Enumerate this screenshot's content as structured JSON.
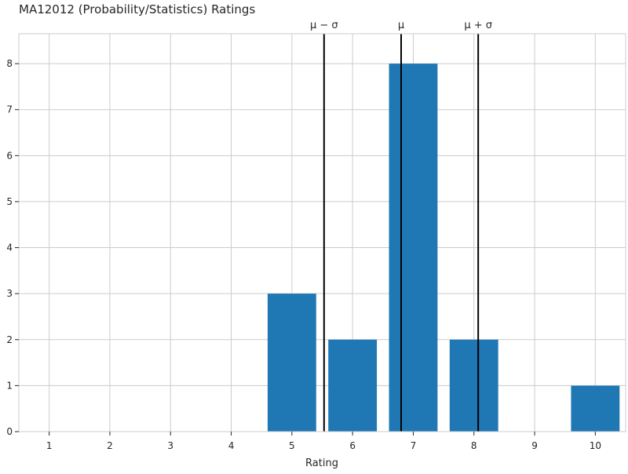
{
  "chart_data": {
    "type": "bar",
    "title": "MA12012 (Probability/Statistics) Ratings",
    "xlabel": "Rating",
    "ylabel": "",
    "categories": [
      "1",
      "2",
      "3",
      "4",
      "5",
      "6",
      "7",
      "8",
      "9",
      "10"
    ],
    "x": [
      1,
      2,
      3,
      4,
      5,
      6,
      7,
      8,
      9,
      10
    ],
    "values": [
      0,
      0,
      0,
      0,
      3,
      2,
      8,
      2,
      0,
      1
    ],
    "xlim": [
      0.5,
      10.5
    ],
    "ylim": [
      0,
      8.65
    ],
    "yticks": [
      0,
      1,
      2,
      3,
      4,
      5,
      6,
      7,
      8
    ],
    "grid": true,
    "reference_lines": [
      {
        "label": "μ − σ",
        "x": 5.53
      },
      {
        "label": "μ",
        "x": 6.8
      },
      {
        "label": "μ + σ",
        "x": 8.07
      }
    ],
    "colors": {
      "bar": "#1f77b4",
      "reference_line": "#000000",
      "grid": "#cccccc",
      "axes": "#cccccc",
      "text": "#262626"
    }
  }
}
